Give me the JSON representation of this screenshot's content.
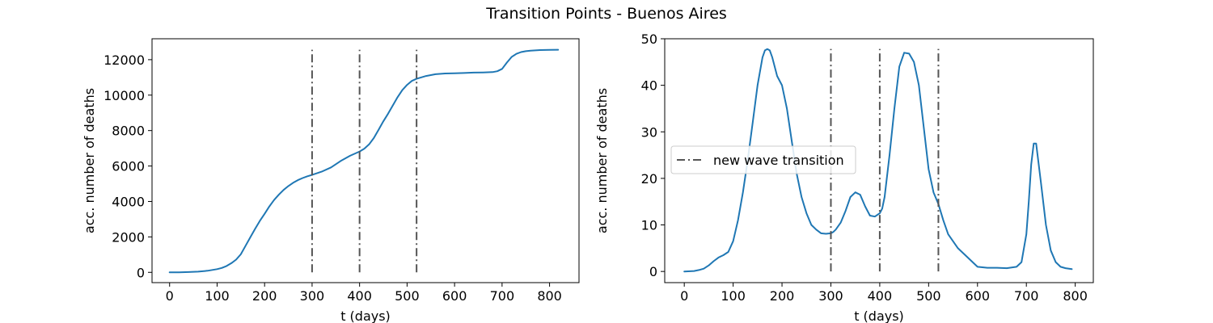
{
  "figure": {
    "title": "Transition Points - Buenos Aires"
  },
  "chart_data": [
    {
      "type": "line",
      "title": "",
      "xlabel": "t (days)",
      "ylabel": "acc. number of deaths",
      "xlim": [
        -37,
        862
      ],
      "ylim": [
        -580,
        13180
      ],
      "xticks": [
        0,
        100,
        200,
        300,
        400,
        500,
        600,
        700,
        800
      ],
      "yticks": [
        0,
        2000,
        4000,
        6000,
        8000,
        10000,
        12000
      ],
      "grid": false,
      "legend": "none",
      "series": [
        {
          "color": "#1f77b4",
          "x": [
            0,
            20,
            40,
            60,
            80,
            100,
            110,
            120,
            130,
            140,
            150,
            160,
            170,
            180,
            190,
            200,
            210,
            220,
            230,
            240,
            250,
            260,
            270,
            280,
            290,
            300,
            320,
            340,
            360,
            380,
            400,
            410,
            420,
            430,
            440,
            450,
            460,
            470,
            480,
            490,
            500,
            510,
            520,
            540,
            560,
            580,
            600,
            620,
            640,
            660,
            680,
            690,
            700,
            710,
            720,
            730,
            740,
            750,
            760,
            780,
            800,
            818
          ],
          "values": [
            0,
            5,
            15,
            40,
            90,
            180,
            250,
            360,
            520,
            720,
            1020,
            1500,
            1980,
            2450,
            2900,
            3300,
            3720,
            4080,
            4380,
            4650,
            4870,
            5050,
            5200,
            5320,
            5420,
            5500,
            5680,
            5920,
            6280,
            6580,
            6820,
            6980,
            7220,
            7580,
            8050,
            8520,
            8950,
            9420,
            9880,
            10280,
            10580,
            10800,
            10920,
            11080,
            11180,
            11220,
            11230,
            11250,
            11270,
            11280,
            11300,
            11350,
            11480,
            11830,
            12150,
            12330,
            12430,
            12480,
            12510,
            12540,
            12550,
            12560
          ]
        }
      ],
      "vlines": {
        "x": [
          300,
          400,
          520
        ],
        "ymin": 0,
        "ymax": 12560,
        "color": "#555555",
        "style": "dashdot"
      }
    },
    {
      "type": "line",
      "title": "",
      "xlabel": "t (days)",
      "ylabel": "acc. number of deaths",
      "xlim": [
        -40,
        837
      ],
      "ylim": [
        -2.4,
        50
      ],
      "xticks": [
        0,
        100,
        200,
        300,
        400,
        500,
        600,
        700,
        800
      ],
      "yticks": [
        0,
        10,
        20,
        30,
        40,
        50
      ],
      "grid": false,
      "legend": "center-left",
      "legend_entries": [
        {
          "label": "new wave transition",
          "color": "#555555",
          "style": "dashdot"
        }
      ],
      "series": [
        {
          "color": "#1f77b4",
          "x": [
            0,
            20,
            30,
            40,
            50,
            60,
            70,
            80,
            90,
            100,
            110,
            120,
            130,
            140,
            150,
            160,
            165,
            170,
            175,
            180,
            190,
            200,
            210,
            220,
            230,
            240,
            250,
            260,
            270,
            280,
            290,
            300,
            305,
            310,
            320,
            330,
            340,
            350,
            360,
            370,
            380,
            390,
            400,
            405,
            410,
            420,
            430,
            440,
            450,
            460,
            470,
            480,
            490,
            500,
            510,
            520,
            530,
            540,
            560,
            580,
            600,
            620,
            640,
            660,
            680,
            690,
            700,
            705,
            710,
            715,
            720,
            730,
            740,
            750,
            760,
            770,
            780,
            793
          ],
          "values": [
            0,
            0.1,
            0.3,
            0.6,
            1.3,
            2.2,
            3.0,
            3.5,
            4.2,
            6.5,
            11.0,
            17.0,
            24.0,
            32.0,
            40.0,
            46.0,
            47.5,
            47.8,
            47.5,
            46.0,
            42.0,
            40.0,
            35.0,
            28.0,
            21.0,
            16.0,
            12.5,
            10.0,
            9.0,
            8.2,
            8.1,
            8.2,
            8.5,
            9.0,
            10.5,
            13.0,
            16.0,
            17.0,
            16.5,
            14.0,
            12.0,
            11.8,
            12.5,
            13.5,
            16.0,
            25.0,
            35.0,
            44.0,
            47.0,
            46.8,
            45.0,
            40.0,
            31.0,
            22.0,
            17.0,
            14.5,
            11.0,
            8.0,
            5.0,
            3.0,
            1.0,
            0.8,
            0.8,
            0.7,
            1.0,
            2.0,
            8.0,
            15.0,
            23.0,
            27.5,
            27.5,
            19.0,
            10.0,
            4.5,
            2.0,
            1.0,
            0.7,
            0.5
          ]
        }
      ],
      "vlines": {
        "x": [
          300,
          400,
          520
        ],
        "ymin": 0,
        "ymax": 47.8,
        "color": "#555555",
        "style": "dashdot"
      }
    }
  ]
}
